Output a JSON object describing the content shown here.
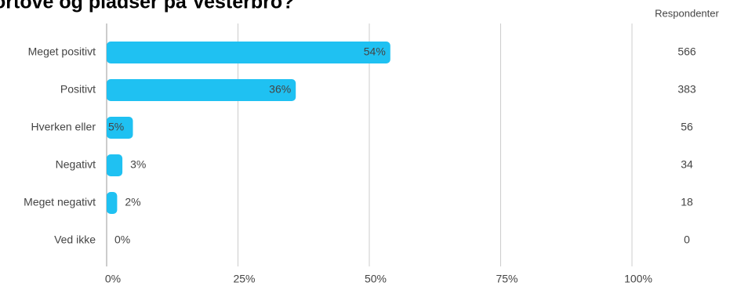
{
  "chart_data": {
    "type": "bar",
    "orientation": "horizontal",
    "title": "ortove og pladser på Vesterbro?",
    "categories": [
      "Meget positivt",
      "Positivt",
      "Hverken eller",
      "Negativt",
      "Meget negativt",
      "Ved ikke"
    ],
    "values": [
      54,
      36,
      5,
      3,
      2,
      0
    ],
    "value_labels": [
      "54%",
      "36%",
      "5%",
      "3%",
      "2%",
      "0%"
    ],
    "color": "#1fc1f2",
    "xlim": [
      0,
      100
    ],
    "xticks": [
      {
        "value": 0,
        "label": "0%"
      },
      {
        "value": 25,
        "label": "25%"
      },
      {
        "value": 50,
        "label": "50%"
      },
      {
        "value": 75,
        "label": "75%"
      },
      {
        "value": 100,
        "label": "100%"
      }
    ],
    "grid": true,
    "respondents_header": "Respondenter",
    "respondents": [
      566,
      383,
      56,
      34,
      18,
      0
    ]
  }
}
